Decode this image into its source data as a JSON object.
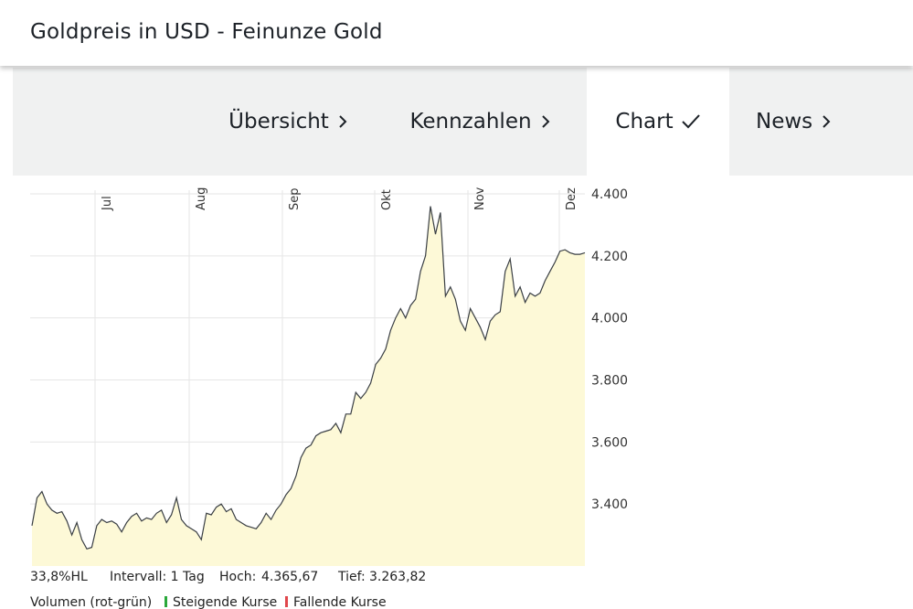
{
  "header": {
    "title": "Goldpreis in USD - Feinunze Gold"
  },
  "tabs": [
    {
      "label": "Übersicht",
      "state": "inactive",
      "icon": "chevron-right-icon"
    },
    {
      "label": "Kennzahlen",
      "state": "inactive",
      "icon": "chevron-right-icon"
    },
    {
      "label": "Chart",
      "state": "active",
      "icon": "checkmark-icon"
    },
    {
      "label": "News",
      "state": "inactive",
      "icon": "chevron-right-icon"
    }
  ],
  "chart_data": {
    "type": "area",
    "x_labels": [
      "Jul",
      "Aug",
      "Sep",
      "Okt",
      "Nov",
      "Dez"
    ],
    "y_ticks": [
      "3.400",
      "3.600",
      "3.800",
      "4.000",
      "4.200",
      "4.400"
    ],
    "y_tick_values": [
      3400,
      3600,
      3800,
      4000,
      4200,
      4400
    ],
    "ylim": [
      3200,
      4400
    ],
    "grid": true,
    "line_color": "#3a3f44",
    "fill_color": "#fdf9d7",
    "values": [
      3330,
      3420,
      3440,
      3400,
      3380,
      3370,
      3375,
      3345,
      3300,
      3340,
      3285,
      3255,
      3260,
      3330,
      3350,
      3340,
      3345,
      3335,
      3310,
      3340,
      3360,
      3370,
      3345,
      3355,
      3350,
      3370,
      3380,
      3340,
      3365,
      3420,
      3350,
      3330,
      3320,
      3310,
      3285,
      3370,
      3365,
      3390,
      3400,
      3375,
      3385,
      3350,
      3340,
      3330,
      3325,
      3320,
      3340,
      3370,
      3350,
      3380,
      3400,
      3430,
      3450,
      3490,
      3550,
      3580,
      3590,
      3620,
      3630,
      3635,
      3640,
      3660,
      3630,
      3690,
      3690,
      3760,
      3740,
      3760,
      3790,
      3850,
      3870,
      3900,
      3960,
      4000,
      4030,
      4000,
      4040,
      4060,
      4150,
      4200,
      4360,
      4270,
      4340,
      4070,
      4100,
      4060,
      3990,
      3960,
      4030,
      4000,
      3970,
      3930,
      3990,
      4010,
      4020,
      4150,
      4190,
      4070,
      4100,
      4050,
      4080,
      4070,
      4080,
      4120,
      4150,
      4180,
      4215,
      4220,
      4210,
      4205,
      4205,
      4210
    ]
  },
  "stats": {
    "hl": "33,8%HL",
    "interval": "Intervall: 1 Tag",
    "high_label": "Hoch:",
    "high_value": "4.365,67",
    "low_label": "Tief:",
    "low_value": "3.263,82"
  },
  "legend": {
    "volume": "Volumen (rot-grün)",
    "rising": "Steigende Kurse",
    "falling": "Fallende Kurse"
  }
}
